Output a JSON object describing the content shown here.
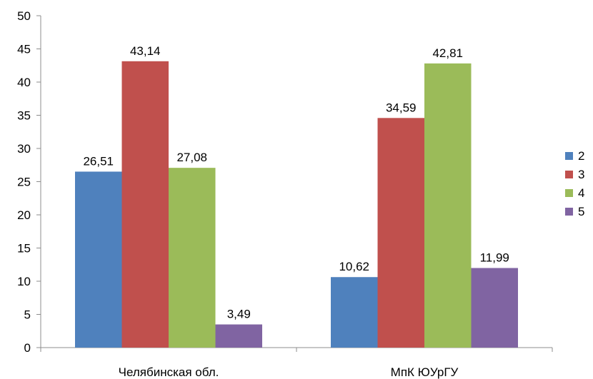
{
  "chart_data": {
    "type": "bar",
    "title": "",
    "xlabel": "",
    "ylabel": "",
    "ylim": [
      0,
      50
    ],
    "yticks": [
      0,
      5,
      10,
      15,
      20,
      25,
      30,
      35,
      40,
      45,
      50
    ],
    "grid": false,
    "legend_position": "right",
    "categories": [
      "Челябинская обл.",
      "МпК ЮУрГУ"
    ],
    "series": [
      {
        "name": "2",
        "color": "#4f81bd",
        "values": [
          26.51,
          10.62
        ],
        "labels": [
          "26,51",
          "10,62"
        ]
      },
      {
        "name": "3",
        "color": "#c0504d",
        "values": [
          43.14,
          34.59
        ],
        "labels": [
          "43,14",
          "34,59"
        ]
      },
      {
        "name": "4",
        "color": "#9bbb59",
        "values": [
          27.08,
          42.81
        ],
        "labels": [
          "27,08",
          "42,81"
        ]
      },
      {
        "name": "5",
        "color": "#8064a2",
        "values": [
          3.49,
          11.99
        ],
        "labels": [
          "3,49",
          "11,99"
        ]
      }
    ]
  }
}
